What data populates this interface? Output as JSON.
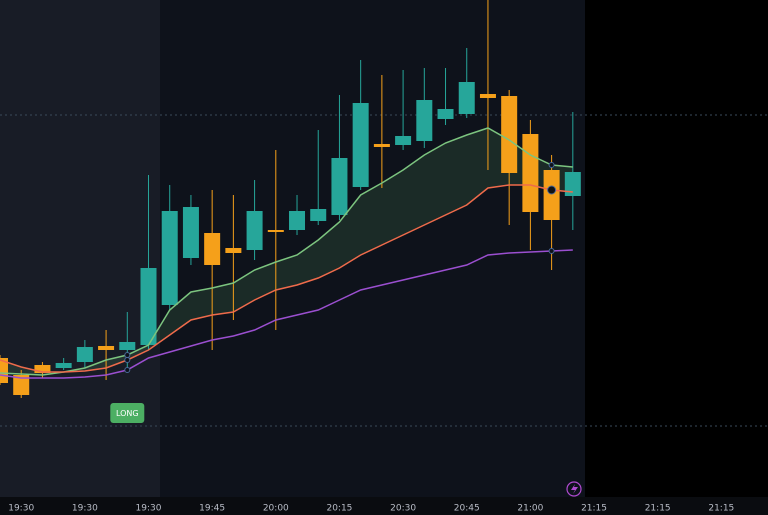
{
  "chart_data": {
    "type": "candlestick",
    "x": [
      0,
      1,
      2,
      3,
      4,
      5,
      6,
      7,
      8,
      9,
      10,
      11,
      12,
      13,
      14,
      15,
      16,
      17,
      18,
      19,
      20,
      21,
      22,
      23,
      24,
      25,
      26,
      27
    ],
    "open": [
      157,
      140,
      150,
      147,
      153,
      169,
      165,
      170,
      210,
      257,
      282,
      267,
      265,
      285,
      285,
      294,
      300,
      328,
      371,
      370,
      374,
      396,
      401,
      421,
      419,
      381,
      345,
      319
    ],
    "high": [
      160,
      145,
      153,
      157,
      175,
      185,
      203,
      340,
      330,
      320,
      325,
      320,
      335,
      365,
      320,
      385,
      420,
      455,
      440,
      445,
      447,
      447,
      467,
      515,
      425,
      395,
      360,
      403
    ],
    "low": [
      130,
      117,
      137,
      145,
      147,
      135,
      145,
      165,
      205,
      250,
      165,
      195,
      255,
      185,
      280,
      290,
      295,
      325,
      327,
      365,
      367,
      390,
      397,
      345,
      290,
      265,
      245,
      285
    ],
    "close": [
      132,
      120,
      142,
      152,
      168,
      165,
      173,
      247,
      304,
      308,
      250,
      262,
      304,
      283,
      304,
      306,
      357,
      412,
      368,
      379,
      415,
      406,
      433,
      417,
      342,
      303,
      295,
      343
    ],
    "up_color": "#26a69a",
    "down_color": "#f5a01a",
    "series": [
      {
        "color": "#7cc47f",
        "values": [
          142,
          141,
          140,
          143,
          147,
          155,
          160,
          170,
          205,
          223,
          227,
          232,
          245,
          253,
          260,
          275,
          293,
          320,
          332,
          345,
          360,
          372,
          380,
          387,
          375,
          360,
          350,
          348
        ]
      },
      {
        "color": "#ef6b4b",
        "values": [
          155,
          148,
          143,
          143,
          144,
          147,
          155,
          165,
          180,
          195,
          200,
          203,
          215,
          225,
          230,
          237,
          247,
          260,
          270,
          280,
          290,
          300,
          310,
          327,
          330,
          330,
          325,
          323
        ]
      },
      {
        "color": "#9b4fd0",
        "values": [
          140,
          137,
          137,
          137,
          138,
          140,
          145,
          157,
          163,
          169,
          175,
          179,
          185,
          195,
          200,
          205,
          215,
          225,
          230,
          235,
          240,
          245,
          250,
          260,
          262,
          263,
          264,
          265
        ]
      }
    ],
    "hlines": [
      400,
      89
    ],
    "annotation": "LONG",
    "xlim": [
      0,
      36.2
    ],
    "ylim": [
      0,
      515
    ],
    "xticks": [
      {
        "value": 1,
        "label": "19:30"
      },
      {
        "value": 4,
        "label": "19:30"
      },
      {
        "value": 7,
        "label": "19:30"
      },
      {
        "value": 10,
        "label": "19:45"
      },
      {
        "value": 13,
        "label": "20:00"
      },
      {
        "value": 16,
        "label": "20:15"
      },
      {
        "value": 19,
        "label": "20:30"
      },
      {
        "value": 22,
        "label": "20:45"
      },
      {
        "value": 25,
        "label": "21:00"
      },
      {
        "value": 28,
        "label": "21:15"
      },
      {
        "value": 31,
        "label": "21:15"
      },
      {
        "value": 34,
        "label": "21:15"
      }
    ]
  }
}
